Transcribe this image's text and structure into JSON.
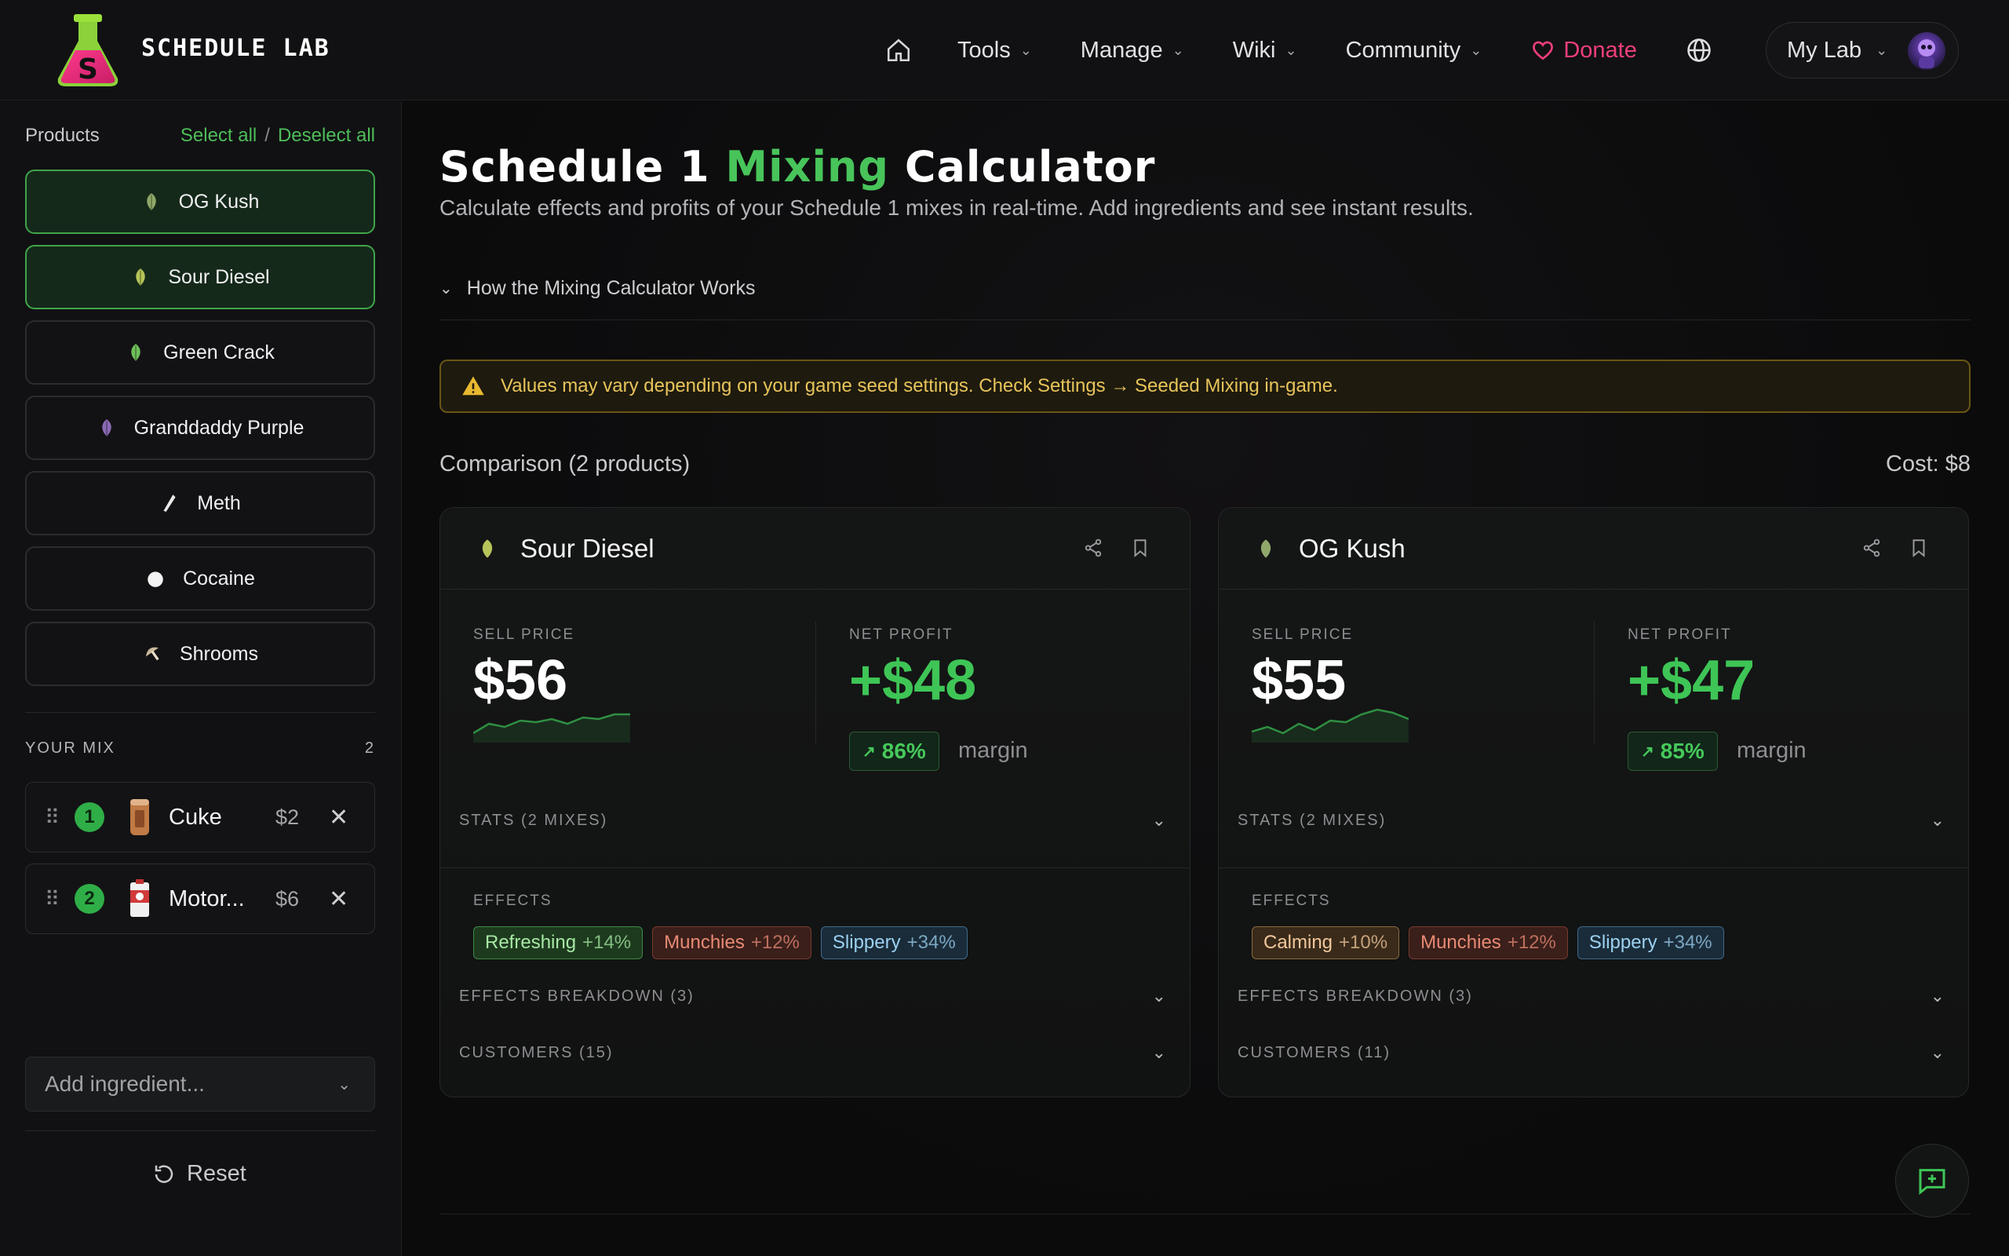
{
  "header": {
    "brand": "SCHEDULE LAB",
    "nav": {
      "tools": "Tools",
      "manage": "Manage",
      "wiki": "Wiki",
      "community": "Community",
      "donate": "Donate",
      "my_lab": "My Lab"
    },
    "icons": [
      "home-icon",
      "chevron-down-icon",
      "heart-icon",
      "globe-icon",
      "avatar"
    ]
  },
  "sidebar": {
    "products_label": "Products",
    "select_all": "Select all",
    "separator": "/",
    "deselect_all": "Deselect all",
    "products": [
      {
        "name": "OG Kush",
        "selected": true,
        "icon": "leaf-icon",
        "color": "#8fa86a"
      },
      {
        "name": "Sour Diesel",
        "selected": true,
        "icon": "leaf-icon",
        "color": "#b6c45a"
      },
      {
        "name": "Green Crack",
        "selected": false,
        "icon": "leaf-icon",
        "color": "#6fbf5a"
      },
      {
        "name": "Granddaddy Purple",
        "selected": false,
        "icon": "leaf-icon",
        "color": "#8a6ab4"
      },
      {
        "name": "Meth",
        "selected": false,
        "icon": "crystal-icon",
        "color": "#e9e9e9"
      },
      {
        "name": "Cocaine",
        "selected": false,
        "icon": "powder-icon",
        "color": "#f4f4f4"
      },
      {
        "name": "Shrooms",
        "selected": false,
        "icon": "mushroom-icon",
        "color": "#c9b89a"
      }
    ],
    "your_mix_label": "YOUR MIX",
    "mix_count": "2",
    "mix": [
      {
        "step": "1",
        "name": "Cuke",
        "price": "$2"
      },
      {
        "step": "2",
        "name": "Motor...",
        "price": "$6"
      }
    ],
    "add_ingredient_placeholder": "Add ingredient...",
    "reset": "Reset"
  },
  "main": {
    "title_part1": "Schedule 1 ",
    "title_green": "Mixing",
    "title_part2": " Calculator",
    "subtitle": "Calculate effects and profits of your Schedule 1 mixes in real-time. Add ingredients and see instant results.",
    "how_it_works": "How the Mixing Calculator Works",
    "warning": "Values may vary depending on your game seed settings. Check Settings → Seeded Mixing in-game.",
    "comparison": "Comparison (2 products)",
    "cost": "Cost: $8",
    "cards": [
      {
        "name": "Sour Diesel",
        "sell_label": "SELL PRICE",
        "sell_price": "$56",
        "profit_label": "NET PROFIT",
        "net_profit": "+$48",
        "margin_pct": "86%",
        "margin_label": "margin",
        "stats_label": "STATS (2 MIXES)",
        "effects_label": "EFFECTS",
        "effects": [
          {
            "name": "Refreshing",
            "pct": "+14%",
            "kind": "refresh"
          },
          {
            "name": "Munchies",
            "pct": "+12%",
            "kind": "munch"
          },
          {
            "name": "Slippery",
            "pct": "+34%",
            "kind": "slip"
          }
        ],
        "breakdown_label": "EFFECTS BREAKDOWN (3)",
        "customers_label": "CUSTOMERS (15)"
      },
      {
        "name": "OG Kush",
        "sell_label": "SELL PRICE",
        "sell_price": "$55",
        "profit_label": "NET PROFIT",
        "net_profit": "+$47",
        "margin_pct": "85%",
        "margin_label": "margin",
        "stats_label": "STATS (2 MIXES)",
        "effects_label": "EFFECTS",
        "effects": [
          {
            "name": "Calming",
            "pct": "+10%",
            "kind": "calm"
          },
          {
            "name": "Munchies",
            "pct": "+12%",
            "kind": "munch"
          },
          {
            "name": "Slippery",
            "pct": "+34%",
            "kind": "slip"
          }
        ],
        "breakdown_label": "EFFECTS BREAKDOWN (3)",
        "customers_label": "CUSTOMERS (11)"
      }
    ]
  },
  "colors": {
    "accent_green": "#48c45a",
    "donate_pink": "#ef3e7a",
    "warning_yellow": "#e8c45a"
  }
}
